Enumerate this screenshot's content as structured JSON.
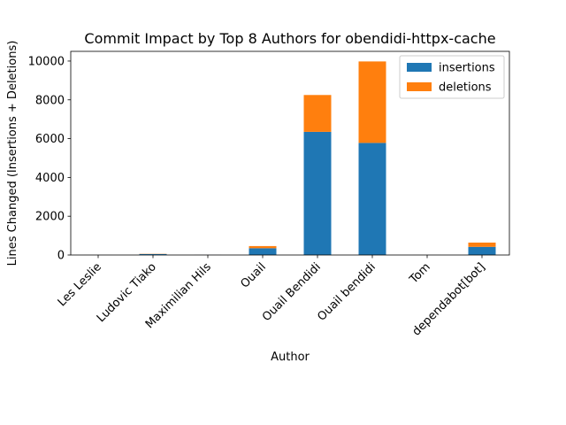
{
  "chart_data": {
    "type": "bar",
    "stacked": true,
    "title": "Commit Impact by Top 8 Authors for obendidi-httpx-cache",
    "xlabel": "Author",
    "ylabel": "Lines Changed (Insertions + Deletions)",
    "ylim": [
      0,
      10500
    ],
    "yticks": [
      0,
      2000,
      4000,
      6000,
      8000,
      10000
    ],
    "categories": [
      "Les Leslie",
      "Ludovic Tiako",
      "Maximilian Hils",
      "Ouail",
      "Ouail Bendidi",
      "Ouail bendidi",
      "Tom",
      "dependabot[bot]"
    ],
    "series": [
      {
        "name": "insertions",
        "color": "#1f77b4",
        "values": [
          2,
          50,
          3,
          350,
          6350,
          5780,
          2,
          420
        ]
      },
      {
        "name": "deletions",
        "color": "#ff7f0e",
        "values": [
          1,
          10,
          1,
          110,
          1900,
          4200,
          1,
          220
        ]
      }
    ],
    "legend_position": "upper right",
    "grid": false
  }
}
